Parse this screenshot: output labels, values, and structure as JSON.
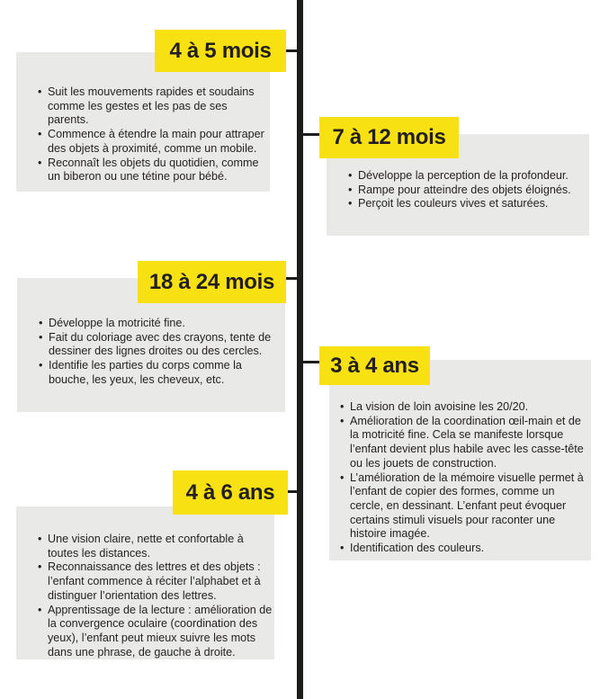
{
  "colors": {
    "label_yellow": "#f7e112",
    "panel_gray": "#e9e9e8",
    "ink_black": "#231f20",
    "timeline_black": "#1d1d1b"
  },
  "timeline": {
    "sections": [
      {
        "label": "4 à 5 mois",
        "side": "left",
        "bullets": [
          "Suit les mouvements rapides et soudains comme les gestes et les pas de ses parents.",
          "Commence à étendre la main pour attraper des objets à proximité, comme un mobile.",
          "Reconnaît les objets du quotidien, comme un biberon ou une tétine pour bébé."
        ]
      },
      {
        "label": "7 à 12 mois",
        "side": "right",
        "bullets": [
          "Développe la perception de la profondeur.",
          "Rampe pour atteindre des objets éloignés.",
          "Perçoit les couleurs vives et saturées."
        ]
      },
      {
        "label": "18 à 24 mois",
        "side": "left",
        "bullets": [
          "Développe la motricité fine.",
          "Fait du coloriage avec des crayons, tente de dessiner des lignes droites ou des cercles.",
          "Identifie les parties du corps comme la bouche, les yeux, les cheveux, etc."
        ]
      },
      {
        "label": "3 à 4 ans",
        "side": "right",
        "bullets": [
          "La vision de loin avoisine les 20/20.",
          "Amélioration de la coordination œil-main et de la motricité fine. Cela se manifeste lorsque l’enfant devient plus habile avec les casse-tête ou les jouets de construction.",
          "L’amélioration de la mémoire visuelle permet à l’enfant de copier des formes, comme un cercle, en dessinant. L’enfant peut évoquer certains stimuli visuels pour raconter une histoire imagée.",
          "Identification des couleurs."
        ]
      },
      {
        "label": "4 à 6 ans",
        "side": "left",
        "bullets": [
          "Une vision claire, nette et confortable à toutes les distances.",
          "Reconnaissance des lettres et des objets : l’enfant commence à réciter l’alphabet et à distinguer l’orientation des lettres.",
          "Apprentissage de la lecture : amélioration de la convergence oculaire (coordination des yeux), l’enfant peut mieux suivre les mots dans une phrase, de gauche à droite."
        ]
      }
    ]
  }
}
